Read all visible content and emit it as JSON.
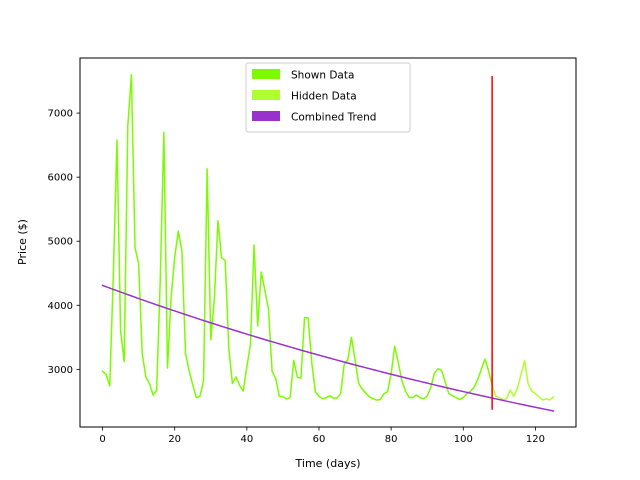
{
  "chart_data": {
    "type": "line",
    "xlabel": "Time (days)",
    "ylabel": "Price ($)",
    "xlim": [
      -6.25,
      131.25
    ],
    "ylim": [
      2100,
      7860
    ],
    "xticks": [
      0,
      20,
      40,
      60,
      80,
      100,
      120
    ],
    "yticks": [
      3000,
      4000,
      5000,
      6000,
      7000
    ],
    "legend_position": "upper center",
    "legend": [
      {
        "label": "Shown Data",
        "color": "#7CFC00"
      },
      {
        "label": "Hidden Data",
        "color": "#ADFF2F"
      },
      {
        "label": "Combined Trend",
        "color": "#9932CC"
      }
    ],
    "series": [
      {
        "name": "Shown Data",
        "color": "#7CFC00",
        "x": [
          0,
          1,
          2,
          3,
          4,
          5,
          6,
          7,
          8,
          9,
          10,
          11,
          12,
          13,
          14,
          15,
          16,
          17,
          18,
          19,
          20,
          21,
          22,
          23,
          24,
          25,
          26,
          27,
          28,
          29,
          30,
          31,
          32,
          33,
          34,
          35,
          36,
          37,
          38,
          39,
          40,
          41,
          42,
          43,
          44,
          45,
          46,
          47,
          48,
          49,
          50,
          51,
          52,
          53,
          54,
          55,
          56,
          57,
          58,
          59,
          60,
          61,
          62,
          63,
          64,
          65,
          66,
          67,
          68,
          69,
          70,
          71,
          72,
          73,
          74,
          75,
          76,
          77,
          78,
          79,
          80,
          81,
          82,
          83,
          84,
          85,
          86,
          87,
          88,
          89,
          90,
          91,
          92,
          93,
          94,
          95,
          96,
          97,
          98,
          99,
          100,
          101,
          102,
          103,
          104,
          105,
          106,
          107,
          108
        ],
        "y": [
          2970,
          2920,
          2740,
          4500,
          6580,
          3600,
          3120,
          6800,
          7600,
          4900,
          4650,
          3250,
          2880,
          2780,
          2600,
          2670,
          4400,
          6700,
          3020,
          4120,
          4750,
          5160,
          4850,
          3250,
          2980,
          2760,
          2560,
          2580,
          2820,
          6130,
          3460,
          4100,
          5320,
          4740,
          4700,
          3330,
          2780,
          2880,
          2750,
          2660,
          3040,
          3390,
          4940,
          3680,
          4520,
          4230,
          3940,
          2970,
          2860,
          2580,
          2570,
          2540,
          2560,
          3140,
          2880,
          2860,
          3810,
          3800,
          3100,
          2650,
          2580,
          2540,
          2560,
          2590,
          2550,
          2550,
          2620,
          3080,
          3150,
          3500,
          3150,
          2780,
          2690,
          2630,
          2570,
          2540,
          2520,
          2530,
          2620,
          2650,
          2930,
          3360,
          3100,
          2820,
          2660,
          2560,
          2560,
          2600,
          2560,
          2540,
          2580,
          2720,
          2940,
          3010,
          2980,
          2800,
          2620,
          2590,
          2560,
          2530,
          2560,
          2620,
          2660,
          2720,
          2840,
          3000,
          3160,
          2980,
          2750
        ]
      },
      {
        "name": "Hidden Data",
        "color": "#ADFF2F",
        "x": [
          108,
          109,
          110,
          111,
          112,
          113,
          114,
          115,
          116,
          117,
          118,
          119,
          120,
          121,
          122,
          123,
          124,
          125
        ],
        "y": [
          2750,
          2580,
          2560,
          2530,
          2540,
          2680,
          2580,
          2700,
          2920,
          3140,
          2770,
          2660,
          2620,
          2570,
          2520,
          2540,
          2520,
          2570
        ]
      },
      {
        "name": "Combined Trend",
        "color": "#9932CC",
        "trend": {
          "start": 4310,
          "end": 2350,
          "xmax": 125
        }
      }
    ],
    "annotations": [
      {
        "kind": "vertical-line",
        "x": 108,
        "y_from": 2370,
        "y_to": 7580,
        "color": "#FF0000"
      }
    ]
  }
}
